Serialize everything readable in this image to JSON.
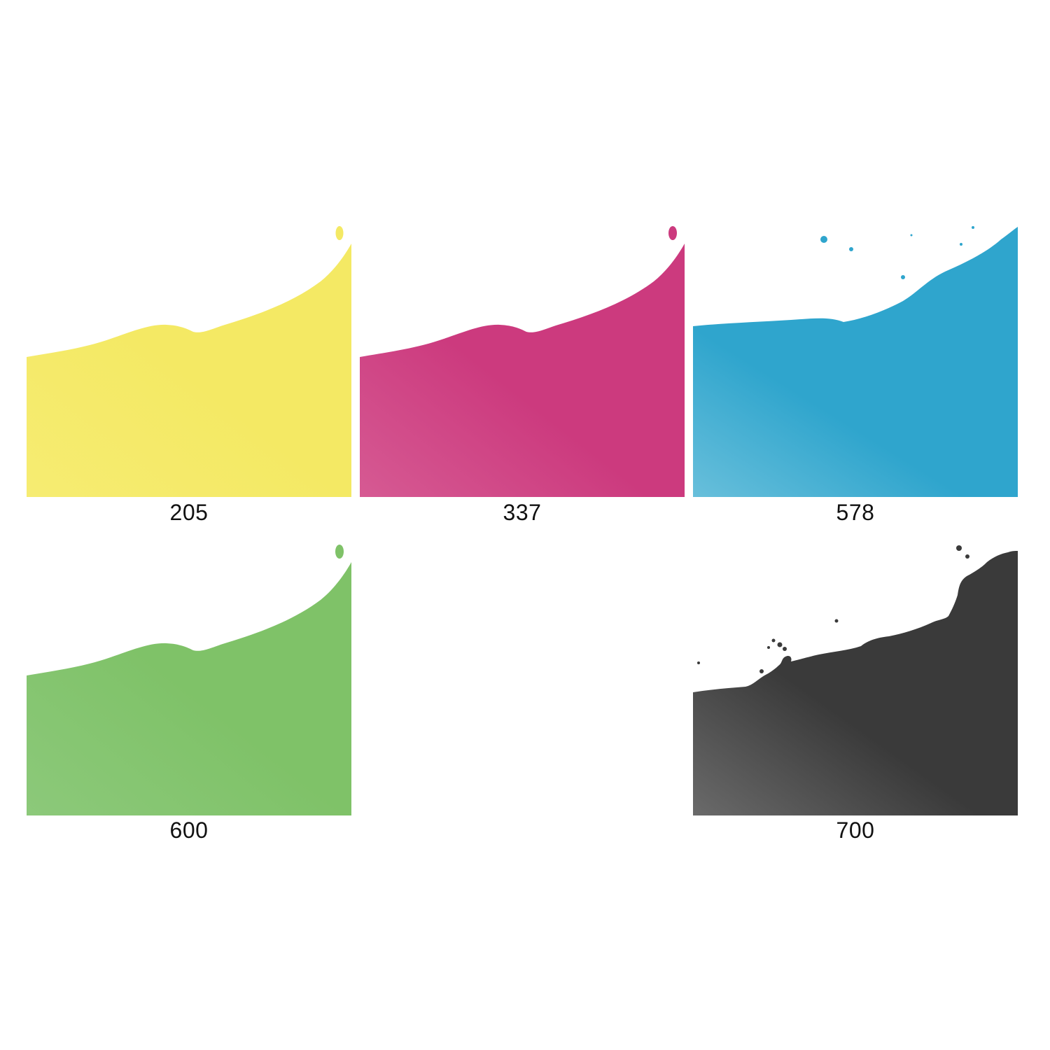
{
  "swatches": [
    {
      "code": "205",
      "color": "#F4E964",
      "shade": "#F6EC72"
    },
    {
      "code": "337",
      "color": "#CC3A7E",
      "shade": "#D65A93"
    },
    {
      "code": "578",
      "color": "#2FA5CD",
      "shade": "#68BFDB"
    },
    {
      "code": "600",
      "color": "#7FC268",
      "shade": "#8CC97A"
    },
    {
      "code": "700",
      "color": "#3A3A3A",
      "shade": "#6A6A6A"
    }
  ]
}
